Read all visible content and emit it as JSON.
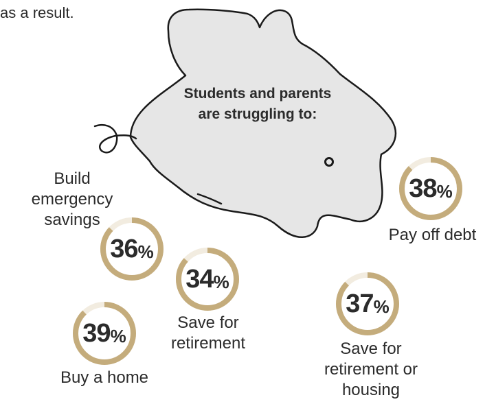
{
  "intro": "as a result.",
  "heading": {
    "line1": "Students and parents",
    "line2": "are struggling to:"
  },
  "ring_color": "#c4ac7c",
  "piggy_fill": "#e6e6e6",
  "stats": [
    {
      "id": "build-emergency-savings",
      "value": "36",
      "unit": "%",
      "fraction": 0.36,
      "label_lines": [
        "Build",
        "emergency",
        "savings"
      ]
    },
    {
      "id": "save-for-retirement",
      "value": "34",
      "unit": "%",
      "fraction": 0.34,
      "label_lines": [
        "Save for",
        "retirement"
      ]
    },
    {
      "id": "buy-a-home",
      "value": "39",
      "unit": "%",
      "fraction": 0.39,
      "label_lines": [
        "Buy a home"
      ]
    },
    {
      "id": "pay-off-debt",
      "value": "38",
      "unit": "%",
      "fraction": 0.38,
      "label_lines": [
        "Pay off debt"
      ]
    },
    {
      "id": "save-for-retirement-or-housing",
      "value": "37",
      "unit": "%",
      "fraction": 0.37,
      "label_lines": [
        "Save for",
        "retirement or",
        "housing"
      ]
    }
  ]
}
